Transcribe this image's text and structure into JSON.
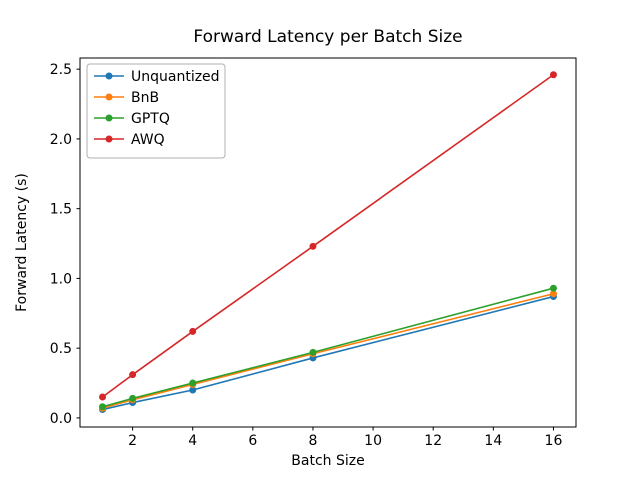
{
  "chart_data": {
    "type": "line",
    "title": "Forward Latency per Batch Size",
    "xlabel": "Batch Size",
    "ylabel": "Forward Latency (s)",
    "x": [
      1,
      2,
      4,
      8,
      16
    ],
    "series": [
      {
        "name": "Unquantized",
        "color": "#1f77b4",
        "values": [
          0.06,
          0.11,
          0.2,
          0.43,
          0.87
        ]
      },
      {
        "name": "BnB",
        "color": "#ff7f0e",
        "values": [
          0.07,
          0.13,
          0.24,
          0.46,
          0.89
        ]
      },
      {
        "name": "GPTQ",
        "color": "#2ca02c",
        "values": [
          0.08,
          0.14,
          0.25,
          0.47,
          0.93
        ]
      },
      {
        "name": "AWQ",
        "color": "#d62728",
        "values": [
          0.15,
          0.31,
          0.62,
          1.23,
          2.46
        ]
      }
    ],
    "xlim": [
      0.25,
      16.75
    ],
    "ylim": [
      -0.065,
      2.58
    ],
    "xticks": [
      2,
      4,
      6,
      8,
      10,
      12,
      14,
      16
    ],
    "yticks": [
      0.0,
      0.5,
      1.0,
      1.5,
      2.0,
      2.5
    ],
    "legend_position": "upper left",
    "marker": "o",
    "grid": false,
    "frame_color": "#000000",
    "legend_border_color": "#b0b0b0",
    "background_color": "#ffffff"
  }
}
